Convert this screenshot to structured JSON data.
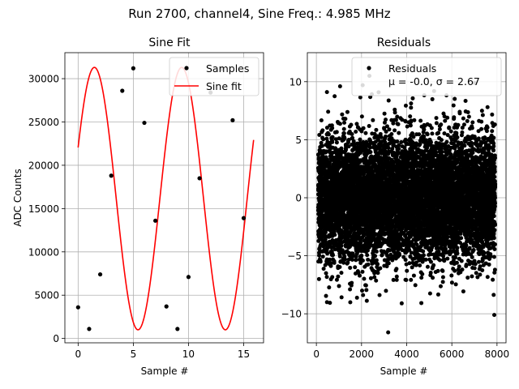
{
  "figure": {
    "suptitle": "Run 2700, channel4, Sine Freq.: 4.985 MHz"
  },
  "colors": {
    "samples": "#000000",
    "fit": "#ff0000",
    "residuals": "#000000",
    "grid": "#b0b0b0"
  },
  "chart_data": [
    {
      "type": "line",
      "title": "Sine Fit",
      "xlabel": "Sample #",
      "ylabel": "ADC Counts",
      "xlim": [
        -1.2,
        16.8
      ],
      "ylim": [
        -500,
        33000
      ],
      "xticks": [
        0,
        5,
        10,
        15
      ],
      "yticks": [
        0,
        5000,
        10000,
        15000,
        20000,
        25000,
        30000
      ],
      "grid": true,
      "legend": "top-right",
      "series": [
        {
          "name": "Samples",
          "kind": "points",
          "x": [
            0,
            1,
            2,
            3,
            4,
            5,
            6,
            7,
            8,
            9,
            10,
            11,
            12,
            13,
            14,
            15
          ],
          "y": [
            3600,
            1100,
            7400,
            18800,
            28600,
            31200,
            24900,
            13600,
            3700,
            1100,
            7100,
            18500,
            28400,
            31100,
            25200,
            13900
          ]
        },
        {
          "name": "Sine fit",
          "kind": "line",
          "fit": {
            "offset": 16150,
            "amplitude": 15150,
            "period": 7.91,
            "phase": 0.4,
            "x_range": [
              0,
              15.9
            ]
          }
        }
      ]
    },
    {
      "type": "scatter",
      "title": "Residuals",
      "xlabel": "Sample #",
      "ylabel": "",
      "xlim": [
        -400,
        8400
      ],
      "ylim": [
        -12.5,
        12.5
      ],
      "xticks": [
        0,
        2000,
        4000,
        6000,
        8000
      ],
      "yticks": [
        -10,
        -5,
        0,
        5,
        10
      ],
      "grid": true,
      "legend": "top-right",
      "series": [
        {
          "name": "Residuals",
          "label_stats": "μ = -0.0, σ = 2.67",
          "mu": -0.0,
          "sigma": 2.67,
          "n_points": 7900,
          "x_range": [
            80,
            7920
          ],
          "outliers": [
            {
              "x": 3180,
              "y": -11.6
            },
            {
              "x": 7880,
              "y": -10.1
            },
            {
              "x": 470,
              "y": -9.0
            },
            {
              "x": 2350,
              "y": 10.5
            },
            {
              "x": 2050,
              "y": 9.7
            },
            {
              "x": 1050,
              "y": 9.6
            },
            {
              "x": 7010,
              "y": 9.9
            },
            {
              "x": 3780,
              "y": -9.1
            }
          ]
        }
      ]
    }
  ]
}
